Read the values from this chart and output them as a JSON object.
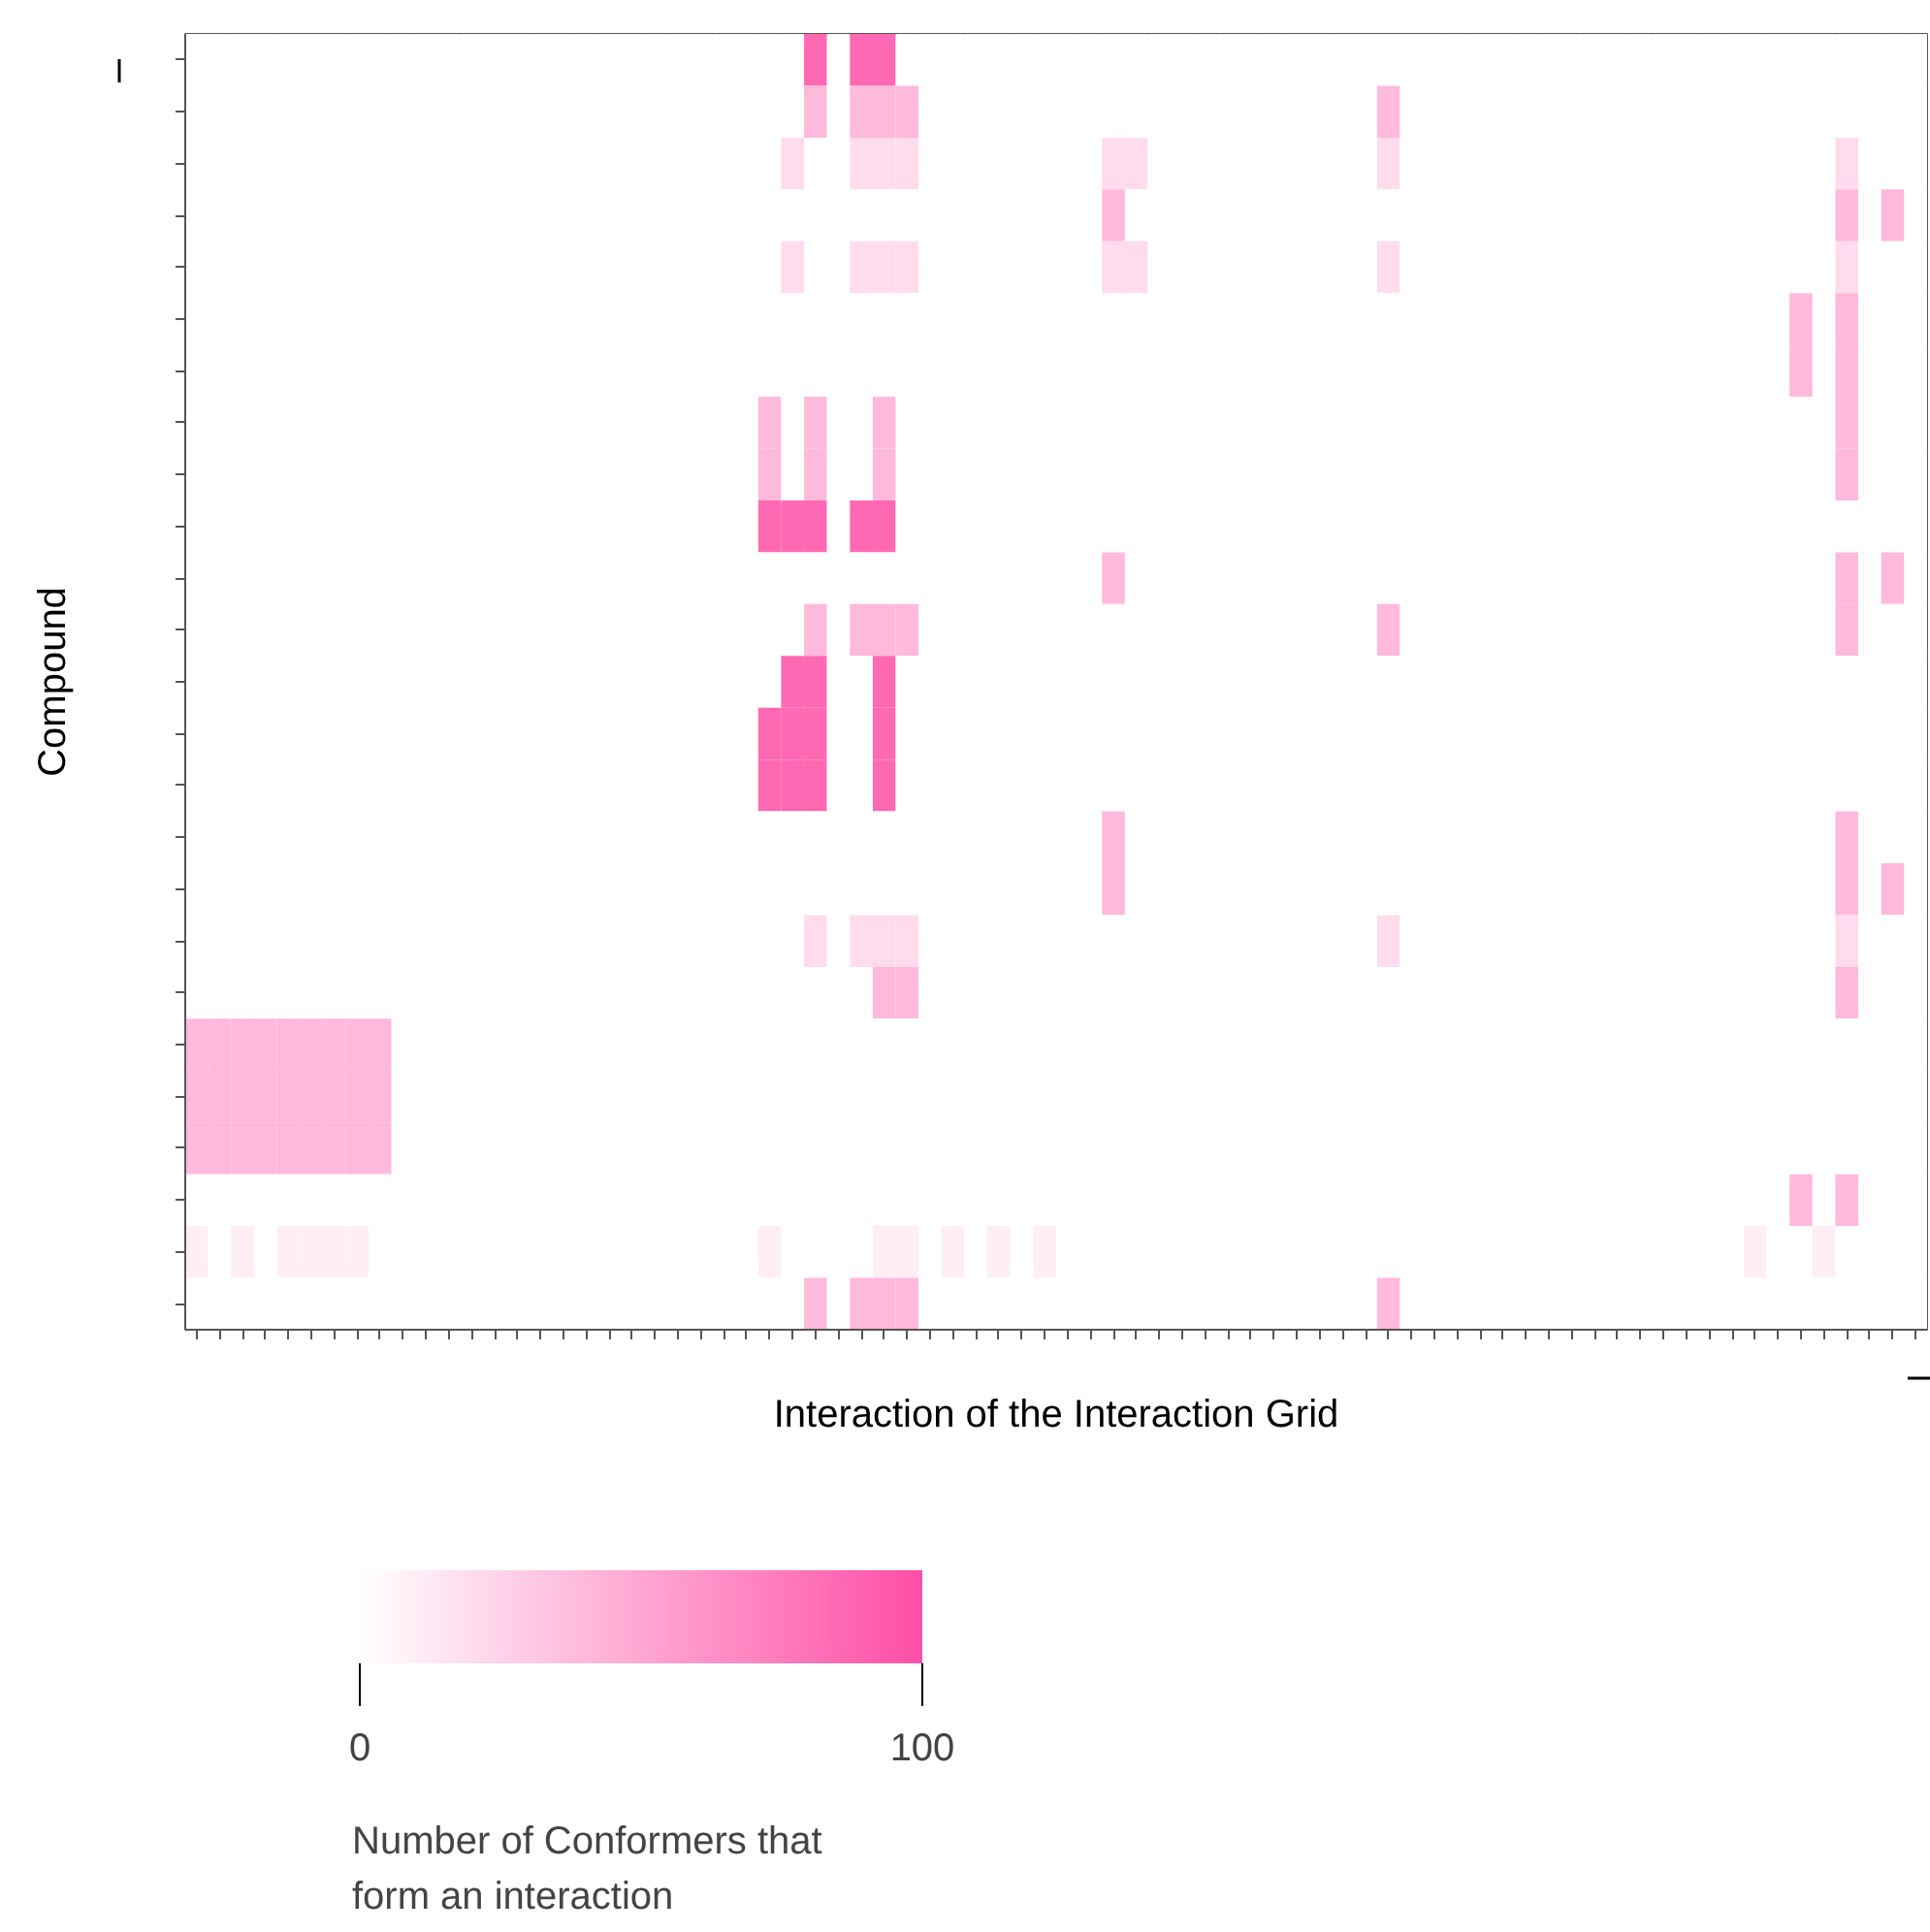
{
  "chart_data": {
    "type": "heatmap",
    "xlabel": "Interaction of the Interaction Grid",
    "ylabel": "Compound",
    "clabel": "Number of Conformers that\nform an interaction",
    "clim": [
      0,
      100
    ],
    "cticks": [
      0,
      100
    ],
    "tick_labels": false,
    "grid": false,
    "categories": [
      null,
      null,
      null,
      null,
      null,
      null,
      null,
      null,
      null,
      null,
      null,
      null,
      null,
      null,
      null,
      null,
      null,
      null,
      null,
      null,
      null,
      null,
      null,
      null,
      null,
      null,
      null,
      null,
      null,
      null,
      null,
      null,
      null,
      null,
      null,
      null,
      null,
      null,
      null,
      null,
      null,
      null,
      null,
      null,
      null,
      null,
      null,
      null,
      null,
      null,
      null,
      null,
      null,
      null,
      null,
      null,
      null,
      null,
      null,
      null,
      null,
      null,
      null,
      null,
      null,
      null,
      null,
      null,
      null,
      null,
      null,
      null,
      null,
      null,
      null,
      null
    ],
    "y_categories": [
      null,
      null,
      null,
      null,
      null,
      null,
      null,
      null,
      null,
      null,
      null,
      null,
      null,
      null,
      null,
      null,
      null,
      null,
      null,
      null,
      null,
      null,
      null,
      null,
      null
    ],
    "cells": [
      [
        0,
        0,
        0,
        0,
        0,
        0,
        0,
        0,
        0,
        0,
        0,
        0,
        0,
        0,
        0,
        0,
        0,
        0,
        0,
        0,
        0,
        0,
        0,
        0,
        0,
        0,
        0,
        85,
        0,
        85,
        85,
        0,
        0,
        0,
        0,
        0,
        0,
        0,
        0,
        0,
        0,
        0,
        0,
        0,
        0,
        0,
        0,
        0,
        0,
        0,
        0,
        0,
        0,
        0,
        0,
        0,
        0,
        0,
        0,
        0,
        0,
        0,
        0,
        0,
        0,
        0,
        0,
        0,
        0,
        0,
        0,
        0,
        0,
        0,
        0,
        0
      ],
      [
        0,
        0,
        0,
        0,
        0,
        0,
        0,
        0,
        0,
        0,
        0,
        0,
        0,
        0,
        0,
        0,
        0,
        0,
        0,
        0,
        0,
        0,
        0,
        0,
        0,
        0,
        0,
        40,
        0,
        40,
        40,
        40,
        0,
        0,
        0,
        0,
        0,
        0,
        0,
        0,
        0,
        0,
        0,
        0,
        0,
        0,
        0,
        0,
        0,
        0,
        0,
        0,
        40,
        0,
        0,
        0,
        0,
        0,
        0,
        0,
        0,
        0,
        0,
        0,
        0,
        0,
        0,
        0,
        0,
        0,
        0,
        0,
        0,
        0,
        0,
        0
      ],
      [
        0,
        0,
        0,
        0,
        0,
        0,
        0,
        0,
        0,
        0,
        0,
        0,
        0,
        0,
        0,
        0,
        0,
        0,
        0,
        0,
        0,
        0,
        0,
        0,
        0,
        0,
        20,
        0,
        0,
        20,
        20,
        20,
        0,
        0,
        0,
        0,
        0,
        0,
        0,
        0,
        20,
        20,
        0,
        0,
        0,
        0,
        0,
        0,
        0,
        0,
        0,
        0,
        20,
        0,
        0,
        0,
        0,
        0,
        0,
        0,
        0,
        0,
        0,
        0,
        0,
        0,
        0,
        0,
        0,
        0,
        0,
        0,
        20,
        0,
        0,
        0
      ],
      [
        0,
        0,
        0,
        0,
        0,
        0,
        0,
        0,
        0,
        0,
        0,
        0,
        0,
        0,
        0,
        0,
        0,
        0,
        0,
        0,
        0,
        0,
        0,
        0,
        0,
        0,
        0,
        0,
        0,
        0,
        0,
        0,
        0,
        0,
        0,
        0,
        0,
        0,
        0,
        0,
        40,
        0,
        0,
        0,
        0,
        0,
        0,
        0,
        0,
        0,
        0,
        0,
        0,
        0,
        0,
        0,
        0,
        0,
        0,
        0,
        0,
        0,
        0,
        0,
        0,
        0,
        0,
        0,
        0,
        0,
        0,
        0,
        40,
        0,
        40,
        0
      ],
      [
        0,
        0,
        0,
        0,
        0,
        0,
        0,
        0,
        0,
        0,
        0,
        0,
        0,
        0,
        0,
        0,
        0,
        0,
        0,
        0,
        0,
        0,
        0,
        0,
        0,
        0,
        20,
        0,
        0,
        20,
        20,
        20,
        0,
        0,
        0,
        0,
        0,
        0,
        0,
        0,
        20,
        20,
        0,
        0,
        0,
        0,
        0,
        0,
        0,
        0,
        0,
        0,
        20,
        0,
        0,
        0,
        0,
        0,
        0,
        0,
        0,
        0,
        0,
        0,
        0,
        0,
        0,
        0,
        0,
        0,
        0,
        0,
        20,
        0,
        0,
        0
      ],
      [
        0,
        0,
        0,
        0,
        0,
        0,
        0,
        0,
        0,
        0,
        0,
        0,
        0,
        0,
        0,
        0,
        0,
        0,
        0,
        0,
        0,
        0,
        0,
        0,
        0,
        0,
        0,
        0,
        0,
        0,
        0,
        0,
        0,
        0,
        0,
        0,
        0,
        0,
        0,
        0,
        0,
        0,
        0,
        0,
        0,
        0,
        0,
        0,
        0,
        0,
        0,
        0,
        0,
        0,
        0,
        0,
        0,
        0,
        0,
        0,
        0,
        0,
        0,
        0,
        0,
        0,
        0,
        0,
        0,
        0,
        40,
        0,
        40,
        0,
        0,
        0
      ],
      [
        0,
        0,
        0,
        0,
        0,
        0,
        0,
        0,
        0,
        0,
        0,
        0,
        0,
        0,
        0,
        0,
        0,
        0,
        0,
        0,
        0,
        0,
        0,
        0,
        0,
        0,
        0,
        0,
        0,
        0,
        0,
        0,
        0,
        0,
        0,
        0,
        0,
        0,
        0,
        0,
        0,
        0,
        0,
        0,
        0,
        0,
        0,
        0,
        0,
        0,
        0,
        0,
        0,
        0,
        0,
        0,
        0,
        0,
        0,
        0,
        0,
        0,
        0,
        0,
        0,
        0,
        0,
        0,
        0,
        0,
        40,
        0,
        40,
        0,
        0,
        0
      ],
      [
        0,
        0,
        0,
        0,
        0,
        0,
        0,
        0,
        0,
        0,
        0,
        0,
        0,
        0,
        0,
        0,
        0,
        0,
        0,
        0,
        0,
        0,
        0,
        0,
        0,
        40,
        0,
        40,
        0,
        0,
        40,
        0,
        0,
        0,
        0,
        0,
        0,
        0,
        0,
        0,
        0,
        0,
        0,
        0,
        0,
        0,
        0,
        0,
        0,
        0,
        0,
        0,
        0,
        0,
        0,
        0,
        0,
        0,
        0,
        0,
        0,
        0,
        0,
        0,
        0,
        0,
        0,
        0,
        0,
        0,
        0,
        0,
        40,
        0,
        0,
        0
      ],
      [
        0,
        0,
        0,
        0,
        0,
        0,
        0,
        0,
        0,
        0,
        0,
        0,
        0,
        0,
        0,
        0,
        0,
        0,
        0,
        0,
        0,
        0,
        0,
        0,
        0,
        40,
        0,
        40,
        0,
        0,
        40,
        0,
        0,
        0,
        0,
        0,
        0,
        0,
        0,
        0,
        0,
        0,
        0,
        0,
        0,
        0,
        0,
        0,
        0,
        0,
        0,
        0,
        0,
        0,
        0,
        0,
        0,
        0,
        0,
        0,
        0,
        0,
        0,
        0,
        0,
        0,
        0,
        0,
        0,
        0,
        0,
        0,
        40,
        0,
        0,
        0
      ],
      [
        0,
        0,
        0,
        0,
        0,
        0,
        0,
        0,
        0,
        0,
        0,
        0,
        0,
        0,
        0,
        0,
        0,
        0,
        0,
        0,
        0,
        0,
        0,
        0,
        0,
        85,
        85,
        85,
        0,
        85,
        85,
        0,
        0,
        0,
        0,
        0,
        0,
        0,
        0,
        0,
        0,
        0,
        0,
        0,
        0,
        0,
        0,
        0,
        0,
        0,
        0,
        0,
        0,
        0,
        0,
        0,
        0,
        0,
        0,
        0,
        0,
        0,
        0,
        0,
        0,
        0,
        0,
        0,
        0,
        0,
        0,
        0,
        0,
        0,
        0,
        0
      ],
      [
        0,
        0,
        0,
        0,
        0,
        0,
        0,
        0,
        0,
        0,
        0,
        0,
        0,
        0,
        0,
        0,
        0,
        0,
        0,
        0,
        0,
        0,
        0,
        0,
        0,
        0,
        0,
        0,
        0,
        0,
        0,
        0,
        0,
        0,
        0,
        0,
        0,
        0,
        0,
        0,
        40,
        0,
        0,
        0,
        0,
        0,
        0,
        0,
        0,
        0,
        0,
        0,
        0,
        0,
        0,
        0,
        0,
        0,
        0,
        0,
        0,
        0,
        0,
        0,
        0,
        0,
        0,
        0,
        0,
        0,
        0,
        0,
        40,
        0,
        40,
        0
      ],
      [
        0,
        0,
        0,
        0,
        0,
        0,
        0,
        0,
        0,
        0,
        0,
        0,
        0,
        0,
        0,
        0,
        0,
        0,
        0,
        0,
        0,
        0,
        0,
        0,
        0,
        0,
        0,
        40,
        0,
        40,
        40,
        40,
        0,
        0,
        0,
        0,
        0,
        0,
        0,
        0,
        0,
        0,
        0,
        0,
        0,
        0,
        0,
        0,
        0,
        0,
        0,
        0,
        40,
        0,
        0,
        0,
        0,
        0,
        0,
        0,
        0,
        0,
        0,
        0,
        0,
        0,
        0,
        0,
        0,
        0,
        0,
        0,
        40,
        0,
        0,
        0
      ],
      [
        0,
        0,
        0,
        0,
        0,
        0,
        0,
        0,
        0,
        0,
        0,
        0,
        0,
        0,
        0,
        0,
        0,
        0,
        0,
        0,
        0,
        0,
        0,
        0,
        0,
        0,
        85,
        85,
        0,
        0,
        85,
        0,
        0,
        0,
        0,
        0,
        0,
        0,
        0,
        0,
        0,
        0,
        0,
        0,
        0,
        0,
        0,
        0,
        0,
        0,
        0,
        0,
        0,
        0,
        0,
        0,
        0,
        0,
        0,
        0,
        0,
        0,
        0,
        0,
        0,
        0,
        0,
        0,
        0,
        0,
        0,
        0,
        0,
        0,
        0,
        0
      ],
      [
        0,
        0,
        0,
        0,
        0,
        0,
        0,
        0,
        0,
        0,
        0,
        0,
        0,
        0,
        0,
        0,
        0,
        0,
        0,
        0,
        0,
        0,
        0,
        0,
        0,
        85,
        85,
        85,
        0,
        0,
        85,
        0,
        0,
        0,
        0,
        0,
        0,
        0,
        0,
        0,
        0,
        0,
        0,
        0,
        0,
        0,
        0,
        0,
        0,
        0,
        0,
        0,
        0,
        0,
        0,
        0,
        0,
        0,
        0,
        0,
        0,
        0,
        0,
        0,
        0,
        0,
        0,
        0,
        0,
        0,
        0,
        0,
        0,
        0,
        0,
        0
      ],
      [
        0,
        0,
        0,
        0,
        0,
        0,
        0,
        0,
        0,
        0,
        0,
        0,
        0,
        0,
        0,
        0,
        0,
        0,
        0,
        0,
        0,
        0,
        0,
        0,
        0,
        85,
        85,
        85,
        0,
        0,
        85,
        0,
        0,
        0,
        0,
        0,
        0,
        0,
        0,
        0,
        0,
        0,
        0,
        0,
        0,
        0,
        0,
        0,
        0,
        0,
        0,
        0,
        0,
        0,
        0,
        0,
        0,
        0,
        0,
        0,
        0,
        0,
        0,
        0,
        0,
        0,
        0,
        0,
        0,
        0,
        0,
        0,
        0,
        0,
        0,
        0
      ],
      [
        0,
        0,
        0,
        0,
        0,
        0,
        0,
        0,
        0,
        0,
        0,
        0,
        0,
        0,
        0,
        0,
        0,
        0,
        0,
        0,
        0,
        0,
        0,
        0,
        0,
        0,
        0,
        0,
        0,
        0,
        0,
        0,
        0,
        0,
        0,
        0,
        0,
        0,
        0,
        0,
        40,
        0,
        0,
        0,
        0,
        0,
        0,
        0,
        0,
        0,
        0,
        0,
        0,
        0,
        0,
        0,
        0,
        0,
        0,
        0,
        0,
        0,
        0,
        0,
        0,
        0,
        0,
        0,
        0,
        0,
        0,
        0,
        40,
        0,
        0,
        0
      ],
      [
        0,
        0,
        0,
        0,
        0,
        0,
        0,
        0,
        0,
        0,
        0,
        0,
        0,
        0,
        0,
        0,
        0,
        0,
        0,
        0,
        0,
        0,
        0,
        0,
        0,
        0,
        0,
        0,
        0,
        0,
        0,
        0,
        0,
        0,
        0,
        0,
        0,
        0,
        0,
        0,
        40,
        0,
        0,
        0,
        0,
        0,
        0,
        0,
        0,
        0,
        0,
        0,
        0,
        0,
        0,
        0,
        0,
        0,
        0,
        0,
        0,
        0,
        0,
        0,
        0,
        0,
        0,
        0,
        0,
        0,
        0,
        0,
        40,
        0,
        40,
        0
      ],
      [
        0,
        0,
        0,
        0,
        0,
        0,
        0,
        0,
        0,
        0,
        0,
        0,
        0,
        0,
        0,
        0,
        0,
        0,
        0,
        0,
        0,
        0,
        0,
        0,
        0,
        0,
        0,
        20,
        0,
        20,
        20,
        20,
        0,
        0,
        0,
        0,
        0,
        0,
        0,
        0,
        0,
        0,
        0,
        0,
        0,
        0,
        0,
        0,
        0,
        0,
        0,
        0,
        20,
        0,
        0,
        0,
        0,
        0,
        0,
        0,
        0,
        0,
        0,
        0,
        0,
        0,
        0,
        0,
        0,
        0,
        0,
        0,
        20,
        0,
        0,
        0
      ],
      [
        0,
        0,
        0,
        0,
        0,
        0,
        0,
        0,
        0,
        0,
        0,
        0,
        0,
        0,
        0,
        0,
        0,
        0,
        0,
        0,
        0,
        0,
        0,
        0,
        0,
        0,
        0,
        0,
        0,
        0,
        40,
        40,
        0,
        0,
        0,
        0,
        0,
        0,
        0,
        0,
        0,
        0,
        0,
        0,
        0,
        0,
        0,
        0,
        0,
        0,
        0,
        0,
        0,
        0,
        0,
        0,
        0,
        0,
        0,
        0,
        0,
        0,
        0,
        0,
        0,
        0,
        0,
        0,
        0,
        0,
        0,
        0,
        40,
        0,
        0,
        0
      ],
      [
        40,
        40,
        40,
        40,
        40,
        40,
        40,
        40,
        40,
        0,
        0,
        0,
        0,
        0,
        0,
        0,
        0,
        0,
        0,
        0,
        0,
        0,
        0,
        0,
        0,
        0,
        0,
        0,
        0,
        0,
        0,
        0,
        0,
        0,
        0,
        0,
        0,
        0,
        0,
        0,
        0,
        0,
        0,
        0,
        0,
        0,
        0,
        0,
        0,
        0,
        0,
        0,
        0,
        0,
        0,
        0,
        0,
        0,
        0,
        0,
        0,
        0,
        0,
        0,
        0,
        0,
        0,
        0,
        0,
        0,
        0,
        0,
        0,
        0,
        0,
        0
      ],
      [
        40,
        40,
        40,
        40,
        40,
        40,
        40,
        40,
        40,
        0,
        0,
        0,
        0,
        0,
        0,
        0,
        0,
        0,
        0,
        0,
        0,
        0,
        0,
        0,
        0,
        0,
        0,
        0,
        0,
        0,
        0,
        0,
        0,
        0,
        0,
        0,
        0,
        0,
        0,
        0,
        0,
        0,
        0,
        0,
        0,
        0,
        0,
        0,
        0,
        0,
        0,
        0,
        0,
        0,
        0,
        0,
        0,
        0,
        0,
        0,
        0,
        0,
        0,
        0,
        0,
        0,
        0,
        0,
        0,
        0,
        0,
        0,
        0,
        0,
        0,
        0
      ],
      [
        40,
        40,
        40,
        40,
        40,
        40,
        40,
        40,
        40,
        0,
        0,
        0,
        0,
        0,
        0,
        0,
        0,
        0,
        0,
        0,
        0,
        0,
        0,
        0,
        0,
        0,
        0,
        0,
        0,
        0,
        0,
        0,
        0,
        0,
        0,
        0,
        0,
        0,
        0,
        0,
        0,
        0,
        0,
        0,
        0,
        0,
        0,
        0,
        0,
        0,
        0,
        0,
        0,
        0,
        0,
        0,
        0,
        0,
        0,
        0,
        0,
        0,
        0,
        0,
        0,
        0,
        0,
        0,
        0,
        0,
        0,
        0,
        0,
        0,
        0,
        0
      ],
      [
        0,
        0,
        0,
        0,
        0,
        0,
        0,
        0,
        0,
        0,
        0,
        0,
        0,
        0,
        0,
        0,
        0,
        0,
        0,
        0,
        0,
        0,
        0,
        0,
        0,
        0,
        0,
        0,
        0,
        0,
        0,
        0,
        0,
        0,
        0,
        0,
        0,
        0,
        0,
        0,
        0,
        0,
        0,
        0,
        0,
        0,
        0,
        0,
        0,
        0,
        0,
        0,
        0,
        0,
        0,
        0,
        0,
        0,
        0,
        0,
        0,
        0,
        0,
        0,
        0,
        0,
        0,
        0,
        0,
        0,
        40,
        0,
        40,
        0,
        0,
        0
      ],
      [
        10,
        0,
        10,
        0,
        10,
        10,
        10,
        10,
        0,
        0,
        0,
        0,
        0,
        0,
        0,
        0,
        0,
        0,
        0,
        0,
        0,
        0,
        0,
        0,
        0,
        10,
        0,
        0,
        0,
        0,
        10,
        10,
        0,
        10,
        0,
        10,
        0,
        10,
        0,
        0,
        0,
        0,
        0,
        0,
        0,
        0,
        0,
        0,
        0,
        0,
        0,
        0,
        0,
        0,
        0,
        0,
        0,
        0,
        0,
        0,
        0,
        0,
        0,
        0,
        0,
        0,
        0,
        0,
        10,
        0,
        0,
        10,
        0,
        0,
        0,
        0
      ],
      [
        0,
        0,
        0,
        0,
        0,
        0,
        0,
        0,
        0,
        0,
        0,
        0,
        0,
        0,
        0,
        0,
        0,
        0,
        0,
        0,
        0,
        0,
        0,
        0,
        0,
        0,
        0,
        40,
        0,
        40,
        40,
        40,
        0,
        0,
        0,
        0,
        0,
        0,
        0,
        0,
        0,
        0,
        0,
        0,
        0,
        0,
        0,
        0,
        0,
        0,
        0,
        0,
        40,
        0,
        0,
        0,
        0,
        0,
        0,
        0,
        0,
        0,
        0,
        0,
        0,
        0,
        0,
        0,
        0,
        0,
        0,
        0,
        0,
        0,
        0,
        0
      ]
    ]
  }
}
